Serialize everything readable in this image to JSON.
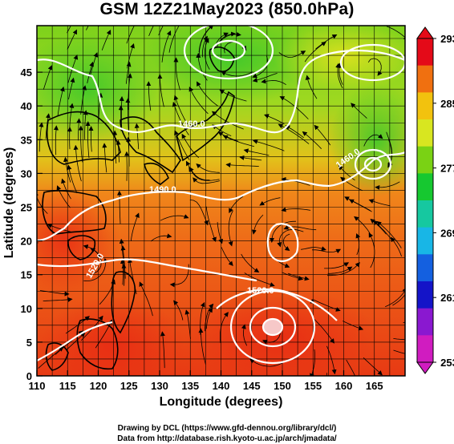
{
  "title": "GSM 12Z21May2023 (850.0hPa)",
  "x_axis": {
    "label": "Longitude (degrees)",
    "ticks": [
      "110",
      "115",
      "120",
      "125",
      "130",
      "135",
      "140",
      "145",
      "150",
      "155",
      "160",
      "165"
    ]
  },
  "y_axis": {
    "label": "Latitude  (degrees)",
    "ticks": [
      "0",
      "5",
      "10",
      "15",
      "20",
      "25",
      "30",
      "35",
      "40",
      "45"
    ]
  },
  "colorbar": {
    "labels": [
      "293",
      "285",
      "277",
      "269",
      "261",
      "253"
    ],
    "colors": [
      "#e40a18",
      "#f07010",
      "#f2c20e",
      "#d8e620",
      "#7ad214",
      "#16c830",
      "#16c8a0",
      "#18b6e6",
      "#1460e0",
      "#1414c8",
      "#8a18d0",
      "#d01cc0"
    ]
  },
  "contour_labels": [
    "1460.0",
    "1490.0",
    "1520.0",
    "1520.0",
    "1460.0"
  ],
  "credits": {
    "line1": "Drawing by DCL (https://www.gfd-dennou.org/library/dcl/)",
    "line2": "Data from http://database.rish.kyoto-u.ac.jp/arch/jmadata/"
  }
}
